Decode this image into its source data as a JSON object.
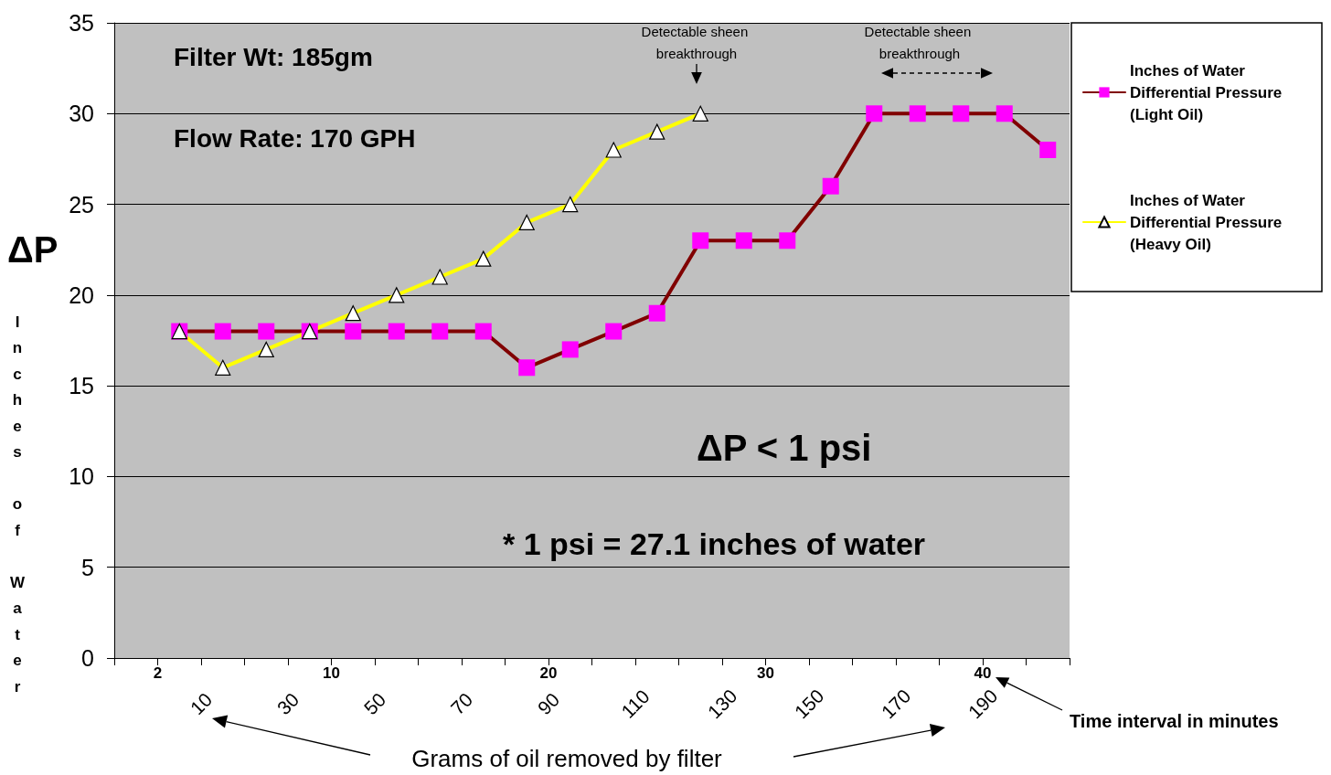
{
  "chart_data": {
    "type": "line",
    "xlabel": "Time interval in minutes",
    "x2label": "Grams of oil removed by filter",
    "ylabel": "Inches of Water",
    "x": [
      3,
      5,
      7,
      9,
      11,
      13,
      15,
      17,
      19,
      21,
      23,
      25,
      27,
      29,
      31,
      33,
      35,
      37,
      39,
      41,
      43
    ],
    "series": [
      {
        "name": "Inches of Water Differential Pressure (Light Oil)",
        "color": "#800000",
        "marker": "square",
        "values": [
          18,
          18,
          18,
          18,
          18,
          18,
          18,
          18,
          16,
          17,
          18,
          19,
          23,
          23,
          23,
          26,
          30,
          30,
          30,
          30,
          28
        ]
      },
      {
        "name": "Inches of Water Differential Pressure (Heavy Oil)",
        "color": "#ffff00",
        "marker": "triangle",
        "values": [
          18,
          16,
          17,
          18,
          19,
          20,
          21,
          22,
          24,
          25,
          28,
          29,
          30,
          null,
          null,
          null,
          null,
          null,
          null,
          null,
          null
        ]
      }
    ],
    "xlim": [
      0,
      44
    ],
    "xticks": [
      {
        "value": 0,
        "label": null
      },
      {
        "value": 2,
        "label": "2"
      },
      {
        "value": 4,
        "label": null
      },
      {
        "value": 6,
        "label": null
      },
      {
        "value": 8,
        "label": null
      },
      {
        "value": 10,
        "label": "10"
      },
      {
        "value": 12,
        "label": null
      },
      {
        "value": 14,
        "label": null
      },
      {
        "value": 16,
        "label": null
      },
      {
        "value": 18,
        "label": null
      },
      {
        "value": 20,
        "label": "20"
      },
      {
        "value": 22,
        "label": null
      },
      {
        "value": 24,
        "label": null
      },
      {
        "value": 26,
        "label": null
      },
      {
        "value": 28,
        "label": null
      },
      {
        "value": 30,
        "label": "30"
      },
      {
        "value": 32,
        "label": null
      },
      {
        "value": 34,
        "label": null
      },
      {
        "value": 36,
        "label": null
      },
      {
        "value": 38,
        "label": null
      },
      {
        "value": 40,
        "label": "40"
      },
      {
        "value": 42,
        "label": null
      },
      {
        "value": 44,
        "label": null
      }
    ],
    "x2lim": [
      -10,
      210
    ],
    "x2ticks": [
      10,
      30,
      50,
      70,
      90,
      110,
      130,
      150,
      170,
      190
    ],
    "ylim": [
      0,
      35
    ],
    "yticks": [
      0,
      5,
      10,
      15,
      20,
      25,
      30,
      35
    ],
    "grid": "y",
    "legend": "right",
    "line_style": "solid",
    "annotations": [
      "ΔP",
      "Filter Wt: 185gm",
      "Flow Rate: 170 GPH",
      "ΔP < 1 psi",
      "* 1 psi = 27.1 inches of water",
      "Detectable sheen breakthrough",
      "Detectable sheen breakthrough"
    ]
  }
}
